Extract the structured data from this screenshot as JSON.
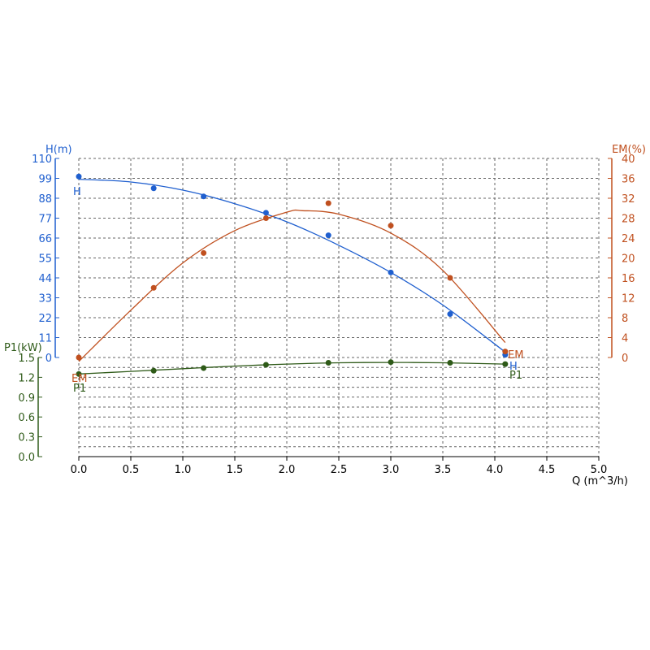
{
  "chart_data": {
    "type": "line",
    "x_axis": {
      "label": "Q (m^3/h)",
      "range": [
        0,
        5
      ],
      "ticks": [
        "0.0",
        "0.5",
        "1.0",
        "1.5",
        "2.0",
        "2.5",
        "3.0",
        "3.5",
        "4.0",
        "4.5",
        "5.0"
      ]
    },
    "h_axis": {
      "label": "H(m)",
      "range": [
        0,
        110
      ],
      "ticks": [
        "0",
        "11",
        "22",
        "33",
        "44",
        "55",
        "66",
        "77",
        "88",
        "99",
        "110"
      ]
    },
    "em_axis": {
      "label": "EM(%)",
      "range": [
        0,
        40
      ],
      "ticks": [
        "0",
        "4",
        "8",
        "12",
        "16",
        "20",
        "24",
        "28",
        "32",
        "36",
        "40"
      ]
    },
    "p1_axis": {
      "label": "P1(kW)",
      "range": [
        0,
        1.5
      ],
      "ticks": [
        "0.0",
        "0.3",
        "0.6",
        "0.9",
        "1.2",
        "1.5"
      ]
    },
    "grid": true,
    "series": [
      {
        "name": "H",
        "axis": "h",
        "color": "#1f5fcf",
        "points": [
          [
            0.0,
            100
          ],
          [
            0.72,
            93.5
          ],
          [
            1.2,
            89
          ],
          [
            1.8,
            80
          ],
          [
            2.4,
            67.5
          ],
          [
            3.0,
            47
          ],
          [
            3.57,
            24
          ],
          [
            4.1,
            1.5
          ]
        ],
        "curve": [
          [
            0.0,
            98.5
          ],
          [
            0.5,
            97
          ],
          [
            1.0,
            92.5
          ],
          [
            1.5,
            85
          ],
          [
            2.0,
            75
          ],
          [
            2.5,
            62
          ],
          [
            3.0,
            47
          ],
          [
            3.5,
            29
          ],
          [
            4.1,
            3
          ]
        ]
      },
      {
        "name": "EM",
        "axis": "em",
        "color": "#c0501f",
        "points": [
          [
            0.0,
            0
          ],
          [
            0.72,
            14
          ],
          [
            1.2,
            21
          ],
          [
            1.8,
            28
          ],
          [
            2.4,
            31
          ],
          [
            3.0,
            26.5
          ],
          [
            3.57,
            16
          ],
          [
            4.1,
            1.2
          ]
        ],
        "curve": [
          [
            0.0,
            -0.8
          ],
          [
            0.5,
            9.5
          ],
          [
            1.0,
            19
          ],
          [
            1.5,
            25.5
          ],
          [
            2.0,
            29.2
          ],
          [
            2.15,
            29.5
          ],
          [
            2.5,
            28.8
          ],
          [
            3.0,
            25
          ],
          [
            3.5,
            17.5
          ],
          [
            4.1,
            3
          ]
        ]
      },
      {
        "name": "P1",
        "axis": "p1",
        "color": "#2e5a18",
        "points": [
          [
            0.0,
            1.25
          ],
          [
            0.72,
            1.3
          ],
          [
            1.2,
            1.34
          ],
          [
            1.8,
            1.39
          ],
          [
            2.4,
            1.42
          ],
          [
            3.0,
            1.43
          ],
          [
            3.57,
            1.42
          ],
          [
            4.1,
            1.4
          ]
        ],
        "curve": [
          [
            0.0,
            1.25
          ],
          [
            0.5,
            1.29
          ],
          [
            1.0,
            1.33
          ],
          [
            1.5,
            1.37
          ],
          [
            2.0,
            1.4
          ],
          [
            2.5,
            1.42
          ],
          [
            3.0,
            1.425
          ],
          [
            3.5,
            1.42
          ],
          [
            4.1,
            1.4
          ]
        ]
      }
    ]
  }
}
